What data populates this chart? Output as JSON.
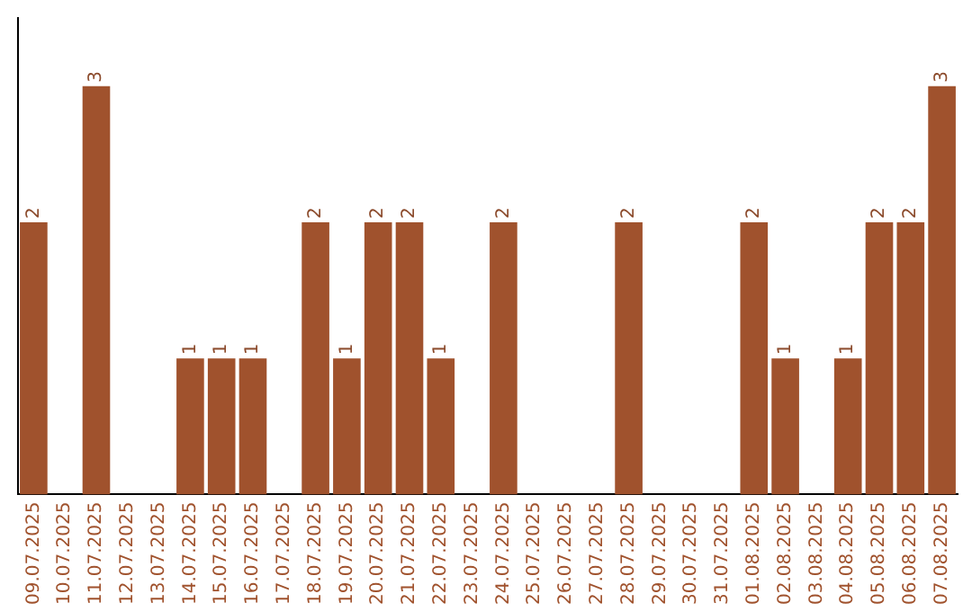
{
  "chart_data": {
    "type": "bar",
    "categories": [
      "09.07.2025",
      "10.07.2025",
      "11.07.2025",
      "12.07.2025",
      "13.07.2025",
      "14.07.2025",
      "15.07.2025",
      "16.07.2025",
      "17.07.2025",
      "18.07.2025",
      "19.07.2025",
      "20.07.2025",
      "21.07.2025",
      "22.07.2025",
      "23.07.2025",
      "24.07.2025",
      "25.07.2025",
      "26.07.2025",
      "27.07.2025",
      "28.07.2025",
      "29.07.2025",
      "30.07.2025",
      "31.07.2025",
      "01.08.2025",
      "02.08.2025",
      "03.08.2025",
      "04.08.2025",
      "05.08.2025",
      "06.08.2025",
      "07.08.2025"
    ],
    "values": [
      2,
      0,
      3,
      0,
      0,
      1,
      1,
      1,
      0,
      2,
      1,
      2,
      2,
      1,
      0,
      2,
      0,
      0,
      0,
      2,
      0,
      0,
      0,
      2,
      1,
      0,
      1,
      2,
      2,
      3
    ],
    "value_labels": [
      "2",
      null,
      "3",
      null,
      null,
      "1",
      "1",
      "1",
      null,
      "2",
      "1",
      "2",
      "2",
      "1",
      null,
      "2",
      null,
      null,
      null,
      "2",
      null,
      null,
      null,
      "2",
      "1",
      null,
      "1",
      "2",
      "2",
      "3"
    ],
    "color": "#a0522d",
    "grid": false,
    "legend": false,
    "tick_labels": "x"
  }
}
